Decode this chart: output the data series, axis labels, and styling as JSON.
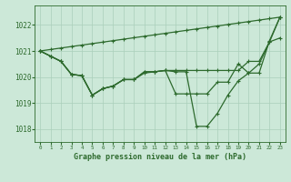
{
  "title": "Graphe pression niveau de la mer (hPa)",
  "hours": [
    0,
    1,
    2,
    3,
    4,
    5,
    6,
    7,
    8,
    9,
    10,
    11,
    12,
    13,
    14,
    15,
    16,
    17,
    18,
    19,
    20,
    21,
    22,
    23
  ],
  "series1_straight": [
    1021.0,
    1021.057,
    1021.113,
    1021.17,
    1021.226,
    1021.283,
    1021.339,
    1021.396,
    1021.452,
    1021.509,
    1021.565,
    1021.622,
    1021.678,
    1021.735,
    1021.791,
    1021.848,
    1021.904,
    1021.961,
    1022.017,
    1022.074,
    1022.13,
    1022.187,
    1022.243,
    1022.3
  ],
  "series2": [
    1021.0,
    1020.8,
    1020.6,
    1020.1,
    1020.05,
    1019.3,
    1019.55,
    1019.65,
    1019.9,
    1019.9,
    1020.15,
    1020.2,
    1020.25,
    1020.25,
    1020.25,
    1020.25,
    1020.25,
    1020.25,
    1020.25,
    1020.25,
    1020.6,
    1020.6,
    1021.35,
    1021.5
  ],
  "series3": [
    1021.0,
    1020.8,
    1020.6,
    1020.1,
    1020.05,
    1019.3,
    1019.55,
    1019.65,
    1019.9,
    1019.9,
    1020.2,
    1020.2,
    1020.25,
    1019.35,
    1019.35,
    1019.35,
    1019.35,
    1019.8,
    1019.8,
    1020.5,
    1020.15,
    1020.15,
    1021.4,
    1022.3
  ],
  "series4": [
    1021.0,
    1020.8,
    1020.6,
    1020.1,
    1020.05,
    1019.3,
    1019.55,
    1019.65,
    1019.9,
    1019.9,
    1020.2,
    1020.2,
    1020.25,
    1020.2,
    1020.2,
    1018.1,
    1018.1,
    1018.6,
    1019.3,
    1019.85,
    1020.15,
    1020.5,
    1021.35,
    1022.3
  ],
  "line_color": "#2d6a2d",
  "bg_color": "#cce8d8",
  "grid_color": "#aacfba",
  "ylim": [
    1017.5,
    1022.75
  ],
  "yticks": [
    1018,
    1019,
    1020,
    1021,
    1022
  ],
  "marker_size": 2.5
}
